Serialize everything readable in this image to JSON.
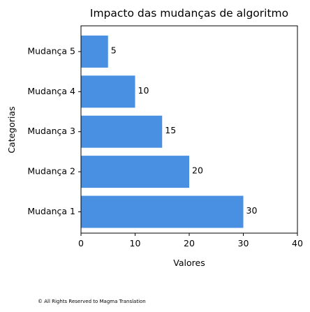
{
  "chart_data": {
    "type": "bar",
    "orientation": "horizontal",
    "title": "Impacto das mudanças de algoritmo",
    "xlabel": "Valores",
    "ylabel": "Categorias",
    "categories": [
      "Mudança 1",
      "Mudança 2",
      "Mudança 3",
      "Mudança 4",
      "Mudança 5"
    ],
    "values": [
      30,
      20,
      15,
      10,
      5
    ],
    "xlim": [
      0,
      40
    ],
    "xticks": [
      0,
      10,
      20,
      30,
      40
    ],
    "grid": false,
    "bar_color": "#4a90e2",
    "data_labels": true
  },
  "footer": {
    "copyright": "© All Rights Reserved to Magma Translation"
  }
}
